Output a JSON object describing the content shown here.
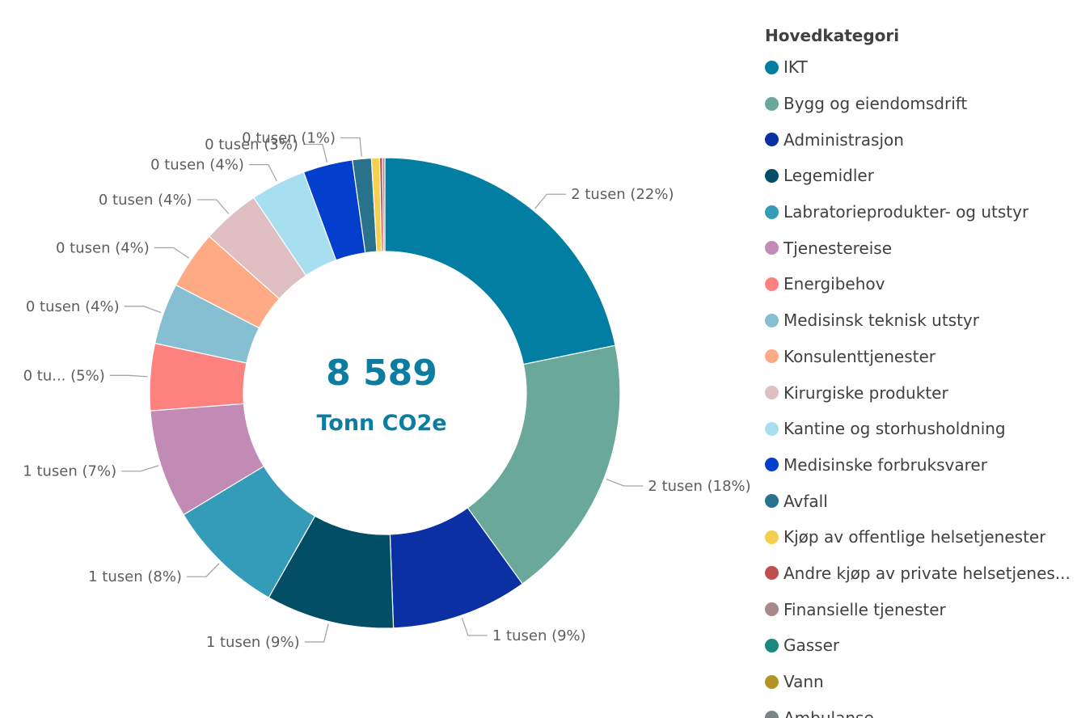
{
  "chart_data": {
    "type": "pie",
    "center": {
      "value": "8 589",
      "unit": "Tonn CO2e"
    },
    "legend": {
      "title": "Hovedkategori",
      "position": "right"
    },
    "slices": [
      {
        "name": "IKT",
        "share": 0.2176,
        "label": "2 tusen (22%)",
        "color": "#037EA3"
      },
      {
        "name": "Bygg og eiendomsdrift",
        "share": 0.183,
        "label": "2 tusen (18%)",
        "color": "#6AA999"
      },
      {
        "name": "Administrasjon",
        "share": 0.0936,
        "label": "1 tusen (9%)",
        "color": "#0B30A3"
      },
      {
        "name": "Legemidler",
        "share": 0.088,
        "label": "1 tusen (9%)",
        "color": "#024F65"
      },
      {
        "name": "Labratorieprodukter- og utstyr",
        "share": 0.0812,
        "label": "1 tusen (8%)",
        "color": "#349BB8"
      },
      {
        "name": "Tjenestereise",
        "share": 0.0745,
        "label": "1 tusen (7%)",
        "color": "#C28BB6"
      },
      {
        "name": "Energibehov",
        "share": 0.046,
        "label": "0 tu... (5%)",
        "color": "#FD827F"
      },
      {
        "name": "Medisinsk teknisk utstyr",
        "share": 0.042,
        "label": "0 tusen (4%)",
        "color": "#86BFD2"
      },
      {
        "name": "Konsulenttjenester",
        "share": 0.04,
        "label": "0 tusen (4%)",
        "color": "#FEAA84"
      },
      {
        "name": "Kirurgiske produkter",
        "share": 0.04,
        "label": "0 tusen (4%)",
        "color": "#DFBFC2"
      },
      {
        "name": "Kantine og storhusholdning",
        "share": 0.038,
        "label": "0 tusen (4%)",
        "color": "#A7DFF0"
      },
      {
        "name": "Medisinske forbruksvarer",
        "share": 0.034,
        "label": "0 tusen (3%)",
        "color": "#033FCC"
      },
      {
        "name": "Avfall",
        "share": 0.013,
        "label": "0 tusen (1%)",
        "color": "#29728C"
      },
      {
        "name": "Kjøp av offentlige helsetjenester",
        "share": 0.0055,
        "label": "",
        "color": "#F5D050"
      },
      {
        "name": "Andre kjøp av private helsetjenes...",
        "share": 0.002,
        "label": "",
        "color": "#BF4F4F"
      },
      {
        "name": "Finansielle tjenester",
        "share": 0.0016,
        "label": "",
        "color": "#A68A8A"
      },
      {
        "name": "Gasser",
        "share": 0.0,
        "label": "",
        "color": "#198A7C"
      },
      {
        "name": "Vann",
        "share": 0.0,
        "label": "",
        "color": "#B39527"
      },
      {
        "name": "Ambulanse",
        "share": 0.0,
        "label": "",
        "color": "#7C8585"
      }
    ]
  }
}
